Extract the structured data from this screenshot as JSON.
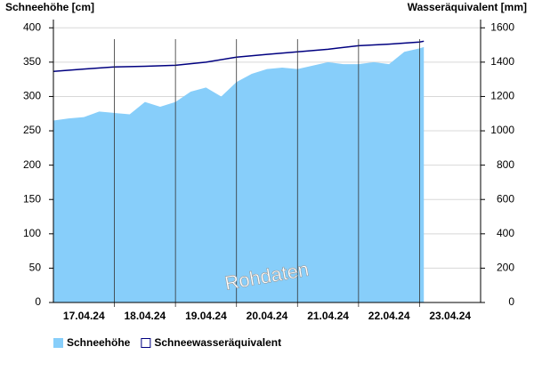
{
  "chart_data": {
    "type": "area-line",
    "y_label": "Schneehöhe [cm]",
    "y2_label": "Wasseräquivalent [mm]",
    "watermark": "Rohdaten",
    "xlim": [
      0,
      7
    ],
    "xticks": [
      {
        "value": 0.5,
        "label": "17.04.24"
      },
      {
        "value": 1.5,
        "label": "18.04.24"
      },
      {
        "value": 2.5,
        "label": "19.04.24"
      },
      {
        "value": 3.5,
        "label": "20.04.24"
      },
      {
        "value": 4.5,
        "label": "21.04.24"
      },
      {
        "value": 5.5,
        "label": "22.04.24"
      },
      {
        "value": 6.5,
        "label": "23.04.24"
      }
    ],
    "xgrid": [
      1,
      2,
      3,
      4,
      5,
      6
    ],
    "ylim": [
      0,
      412
    ],
    "yticks": [
      0,
      50,
      100,
      150,
      200,
      250,
      300,
      350,
      400
    ],
    "y2lim": [
      0,
      1648
    ],
    "y2ticks": [
      0,
      200,
      400,
      600,
      800,
      1000,
      1200,
      1400,
      1600
    ],
    "grid": true,
    "series": [
      {
        "name": "Schneehöhe",
        "kind": "area",
        "color": "#87cefa",
        "x": [
          0,
          0.25,
          0.5,
          0.75,
          1,
          1.25,
          1.5,
          1.75,
          2,
          2.25,
          2.5,
          2.75,
          3,
          3.25,
          3.5,
          3.75,
          4,
          4.25,
          4.5,
          4.75,
          5,
          5.25,
          5.5,
          5.75,
          6,
          6.07
        ],
        "values": [
          265,
          268,
          270,
          278,
          276,
          274,
          292,
          285,
          292,
          307,
          313,
          300,
          321,
          333,
          340,
          342,
          340,
          345,
          350,
          347,
          347,
          350,
          347,
          365,
          370,
          372
        ]
      },
      {
        "name": "Schneewasseräquivalent",
        "kind": "line",
        "color": "#000080",
        "axis": "y2",
        "x": [
          0,
          0.5,
          1,
          1.5,
          2,
          2.5,
          3,
          3.5,
          4,
          4.5,
          5,
          5.5,
          6,
          6.07
        ],
        "values": [
          1346,
          1360,
          1372,
          1376,
          1382,
          1400,
          1429,
          1445,
          1460,
          1475,
          1496,
          1505,
          1517,
          1522
        ]
      }
    ]
  }
}
